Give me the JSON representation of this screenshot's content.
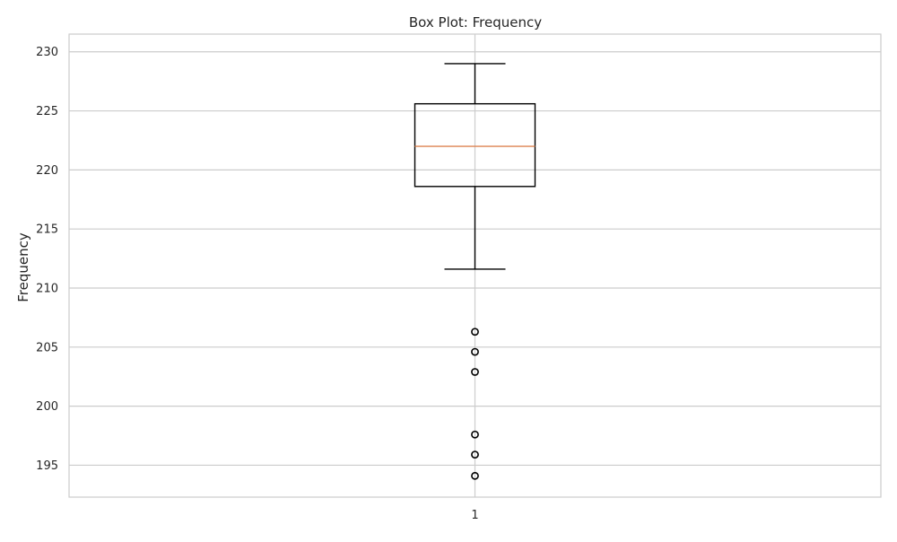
{
  "chart_data": {
    "type": "box",
    "title": "Box Plot: Frequency",
    "xlabel": "",
    "ylabel": "Frequency",
    "categories": [
      "1"
    ],
    "ylim": [
      192.3,
      231.5
    ],
    "yticks": [
      195,
      200,
      205,
      210,
      215,
      220,
      225,
      230
    ],
    "grid": true,
    "boxes": [
      {
        "category": "1",
        "whisker_low": 211.6,
        "q1": 218.6,
        "median": 222.0,
        "q3": 225.6,
        "whisker_high": 229.0,
        "outliers": [
          206.3,
          204.6,
          202.9,
          197.6,
          195.9,
          194.1
        ]
      }
    ],
    "colors": {
      "box": "#000000",
      "median": "#dd8452",
      "grid": "#cccccc",
      "spine": "#cccccc"
    }
  }
}
